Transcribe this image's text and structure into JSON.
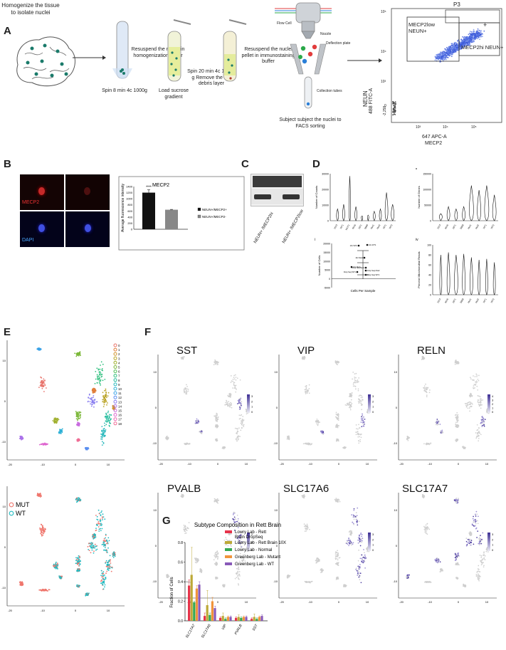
{
  "panels": {
    "A": "A",
    "B": "B",
    "C": "C",
    "D": "D",
    "E": "E",
    "F": "F",
    "G": "G"
  },
  "panelA": {
    "step1": "Homogenize the tissue to isolate nuclei",
    "step2": "Spin 8 min 4c 1000g",
    "step3": "Resuspend the nuclei in homogenization buffer",
    "step4": "Load sucrose gradient",
    "step5": "Spin 20 min 4c 13500 g Remove the top debris layer",
    "step6": "Resuspend the nuclei pellet in immunostaining buffer",
    "flow_cell": "Flow Cell",
    "nozzle": "Nozzle",
    "deflection": "Deflection plate",
    "collection": "Collection tubes",
    "step7": "Subject subject the nuclei to FACS sorting",
    "facs": {
      "gate": "P3",
      "gate_low": "MECP2low NEUN+",
      "gate_hi": "MECP2hi NEUN+",
      "plus": "+",
      "ylabel1": "NEUN",
      "ylabel2": "488 FITC-A",
      "xlabel1": "647 APC-A",
      "xlabel2": "MECP2",
      "yticks": [
        "10⁵",
        "10⁴",
        "10³",
        "0",
        "-2,258"
      ],
      "xticks": [
        "10³",
        "10⁴",
        "10⁵"
      ]
    }
  },
  "panelB": {
    "mecp2": "MECP2",
    "dapi": "DAPI",
    "chart_data": {
      "type": "bar",
      "title": "MECP2",
      "ylabel": "Average fluorescence intensity",
      "categories": [
        "NEUN+/MECP2+",
        "NEUN+/MECP2-"
      ],
      "values": [
        1200,
        640
      ],
      "errors": [
        90,
        10
      ],
      "ylim": [
        0,
        1400
      ],
      "yticks": [
        "0",
        "200",
        "400",
        "600",
        "800",
        "1000",
        "1200",
        "1400"
      ],
      "colors": [
        "#111111",
        "#888888"
      ],
      "sig": "****",
      "legend": [
        "NEUN+/MECP2+",
        "NEUN+/MECP2-"
      ]
    }
  },
  "panelC": {
    "labels": [
      "NEUN+ /MECP2hi",
      "NEUN+ /MECP2low"
    ]
  },
  "panelD": {
    "i": {
      "roman": "i",
      "ylabel": "Number of Counts",
      "yticks": [
        "0",
        "10000",
        "20000",
        "30000"
      ],
      "samples": [
        "1513",
        "WT1",
        "MUT1",
        "4516",
        "1871",
        "5608",
        "Mut1",
        "Mut2",
        "WT1",
        "WT2"
      ]
    },
    "ii": {
      "roman": "ii",
      "ylabel": "Number of Genes",
      "yticks": [
        "0",
        "50000",
        "100000",
        "150000"
      ],
      "samples": [
        "1513",
        "4516",
        "1871",
        "5608",
        "Mut1",
        "Mut2",
        "WT1",
        "WT2"
      ]
    },
    "iii": {
      "roman": "iii",
      "ylabel": "Number of Cells",
      "xlabel": "Cells Per Sample",
      "yticks": [
        "20000",
        "15000",
        "10000",
        "5000",
        "0",
        "-5000"
      ],
      "points": [
        "10x WT2",
        "10x WT1",
        "10x Mut2",
        "10x Mut1",
        "Drop Seq Mut1",
        "Drop Seq Mut2",
        "Drop Seq WT1",
        "Drop Seq WT2"
      ]
    },
    "iv": {
      "roman": "iv",
      "ylabel": "Percent Mitochondrial Reads",
      "yticks": [
        "0",
        "20",
        "40",
        "60",
        "80",
        "100"
      ],
      "samples": [
        "1513",
        "4516",
        "1871",
        "5608",
        "Mut1",
        "Mut2",
        "WT1",
        "WT2"
      ]
    }
  },
  "panelE": {
    "clusters": [
      "0",
      "1",
      "2",
      "3",
      "4",
      "5",
      "6",
      "7",
      "8",
      "9",
      "10",
      "11",
      "12",
      "13",
      "14",
      "15",
      "16",
      "17",
      "18"
    ],
    "cluster_colors": [
      "#e8736b",
      "#e07f3c",
      "#d19530",
      "#bba52a",
      "#9faf2c",
      "#7cb83a",
      "#4fbf55",
      "#2fbf7e",
      "#27bd9f",
      "#2ab9bd",
      "#2fb1d6",
      "#3aa2e7",
      "#5a8ff0",
      "#8a7ff0",
      "#ab72ea",
      "#c86bdf",
      "#de66cf",
      "#ea68b6",
      "#ef6d95"
    ],
    "legend2": [
      "MUT",
      "WT"
    ],
    "legend2_colors": [
      "#ef766d",
      "#1fbcc2"
    ],
    "xticks": [
      "-20",
      "-10",
      "0",
      "10"
    ],
    "yticks": [
      "10",
      "0",
      "-10"
    ]
  },
  "panelF": {
    "genes": [
      "SST",
      "VIP",
      "RELN",
      "PVALB",
      "SLC17A6",
      "SLC17A7"
    ],
    "scales": [
      [
        "3",
        "2",
        "1",
        "0"
      ],
      [
        "3",
        "2",
        "1",
        "0"
      ],
      [
        "4",
        "3",
        "2",
        "1",
        "0"
      ],
      [
        "2",
        "1",
        "0"
      ],
      [
        "3",
        "2",
        "1",
        "0"
      ],
      [
        "3",
        "2",
        "1",
        "0"
      ]
    ],
    "xticks": [
      "-20",
      "-10",
      "0",
      "10"
    ],
    "yticks": [
      "10",
      "0",
      "-10"
    ]
  },
  "panelG": {
    "chart_data": {
      "type": "bar",
      "title": "Subtype Composition in Rett Brain",
      "ylabel": "Fraction of Cells",
      "categories": [
        "SLC17A7",
        "SLC17A6",
        "VIP",
        "PVALB",
        "SST"
      ],
      "ylim": [
        0,
        0.8
      ],
      "yticks": [
        "0.0",
        "0.2",
        "0.4",
        "0.6",
        "0.8"
      ],
      "series": [
        {
          "name": "Lowry Lab - Rett Brain DropSeq",
          "color": "#e6334a",
          "values": [
            0.36,
            0.05,
            0.03,
            0.03,
            0.02
          ],
          "err": [
            0.06,
            0.03,
            0.01,
            0.01,
            0.01
          ]
        },
        {
          "name": "Lowry Lab - Rett Brain 10X",
          "color": "#bda936",
          "values": [
            0.47,
            0.16,
            0.05,
            0.04,
            0.04
          ],
          "err": [
            0.28,
            0.15,
            0.03,
            0.02,
            0.03
          ]
        },
        {
          "name": "Lowry Lab - Normal",
          "color": "#34a853",
          "values": [
            0.19,
            0.06,
            0.02,
            0.03,
            0.02
          ],
          "err": [
            0.01,
            0.02,
            0.01,
            0.01,
            0.01
          ]
        },
        {
          "name": "Greenberg Lab - Mutant",
          "color": "#f0943c",
          "values": [
            0.33,
            0.2,
            0.04,
            0.04,
            0.04
          ],
          "err": [
            0.03,
            0.04,
            0.01,
            0.01,
            0.01
          ]
        },
        {
          "name": "Greenberg Lab - WT",
          "color": "#8859b8",
          "values": [
            0.37,
            0.13,
            0.04,
            0.04,
            0.05
          ],
          "err": [
            0.03,
            0.02,
            0.01,
            0.01,
            0.01
          ]
        }
      ]
    }
  }
}
